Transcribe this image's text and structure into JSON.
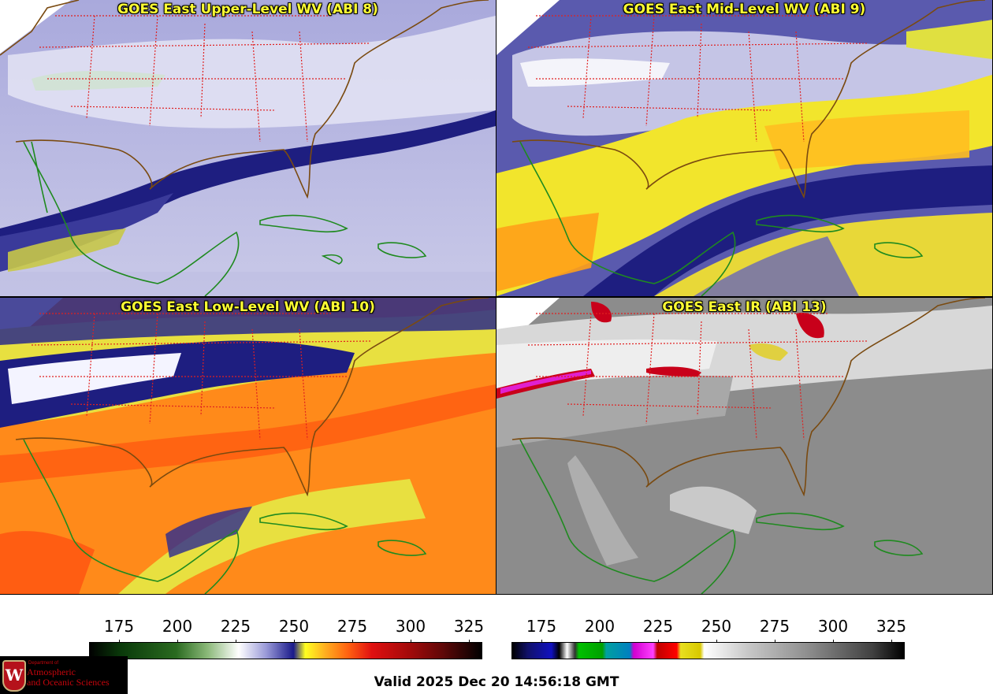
{
  "panels": [
    {
      "title": "GOES East Upper-Level WV (ABI 8)"
    },
    {
      "title": "GOES East Mid-Level WV (ABI 9)"
    },
    {
      "title": "GOES East Low-Level WV (ABI 10)"
    },
    {
      "title": "GOES East IR (ABI 13)"
    }
  ],
  "colorbars": [
    {
      "ticks": [
        "175",
        "200",
        "225",
        "250",
        "275",
        "300",
        "325"
      ]
    },
    {
      "ticks": [
        "175",
        "200",
        "225",
        "250",
        "275",
        "300",
        "325"
      ]
    }
  ],
  "footer": {
    "valid": "Valid 2025 Dec 20 14:56:18 GMT",
    "logo_department": "Department of",
    "logo_line1": "Atmospheric",
    "logo_line2": "and Oceanic Sciences",
    "logo_crest": "W"
  },
  "colors": {
    "wv_band_dark": "#1c1c7a",
    "wv_light": "#d8d8ee",
    "yellow": "#f0e030",
    "orange": "#ff7a10",
    "coast": "#1f8a1f",
    "state_lines": "#e02020",
    "ir_gray": "#8a8a8a"
  }
}
